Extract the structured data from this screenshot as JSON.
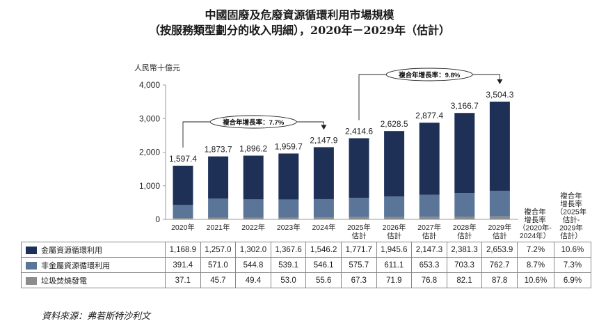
{
  "title": {
    "line1": "中國固廢及危廢資源循環利用市場規模",
    "line2": "（按服務類型劃分的收入明細），2020年－2029年（估計）"
  },
  "colors": {
    "metal": "#1f3057",
    "nonmetal": "#5a7598",
    "waste": "#8c8c8c"
  },
  "chart_data": {
    "type": "bar",
    "stacked": true,
    "unit_label": "人民幣十億元",
    "ylim": [
      0,
      4000
    ],
    "yticks": [
      "0",
      "1,000",
      "2,000",
      "3,000",
      "4,000"
    ],
    "categories": [
      "2020年",
      "2021年",
      "2022年",
      "2023年",
      "2024年",
      "2025年\n估計",
      "2026年\n估計",
      "2027年\n估計",
      "2028年\n估計",
      "2029年\n估計"
    ],
    "totals": [
      1597.4,
      1873.7,
      1896.2,
      1959.7,
      2147.9,
      2414.6,
      2628.5,
      2877.4,
      3166.7,
      3504.3
    ],
    "total_labels": [
      "1,597.4",
      "1,873.7",
      "1,896.2",
      "1,959.7",
      "2,147.9",
      "2,414.6",
      "2,628.5",
      "2,877.4",
      "3,166.7",
      "3,504.3"
    ],
    "series": [
      {
        "name": "垃圾焚燒發電",
        "color_key": "waste",
        "values": [
          37.1,
          45.7,
          49.4,
          53.0,
          55.6,
          67.3,
          71.9,
          76.8,
          82.1,
          87.8
        ],
        "labels": [
          "37.1",
          "45.7",
          "49.4",
          "53.0",
          "55.6",
          "67.3",
          "71.9",
          "76.8",
          "82.1",
          "87.8"
        ],
        "cagr1": "10.6%",
        "cagr2": "6.9%"
      },
      {
        "name": "非金屬資源循環利用",
        "color_key": "nonmetal",
        "values": [
          391.4,
          571.0,
          544.8,
          539.1,
          546.1,
          575.7,
          611.1,
          653.3,
          703.3,
          762.7
        ],
        "labels": [
          "391.4",
          "571.0",
          "544.8",
          "539.1",
          "546.1",
          "575.7",
          "611.1",
          "653.3",
          "703.3",
          "762.7"
        ],
        "cagr1": "8.7%",
        "cagr2": "7.3%"
      },
      {
        "name": "金屬資源循環利用",
        "color_key": "metal",
        "values": [
          1168.9,
          1257.0,
          1302.0,
          1367.6,
          1546.2,
          1771.7,
          1945.6,
          2147.3,
          2381.3,
          2653.9
        ],
        "labels": [
          "1,168.9",
          "1,257.0",
          "1,302.0",
          "1,367.6",
          "1,546.2",
          "1,771.7",
          "1,945.6",
          "2,147.3",
          "2,381.3",
          "2,653.9"
        ],
        "cagr1": "7.2%",
        "cagr2": "10.6%"
      }
    ],
    "table_order": [
      2,
      1,
      0
    ],
    "cagr_annotations": [
      {
        "label": "複合年增長率：7.7%",
        "from": 0,
        "to": 4
      },
      {
        "label": "複合年增長率：9.8%",
        "from": 5,
        "to": 9
      }
    ],
    "cagr_headers": [
      "複合年\n增長率\n（2020年-\n2024年）",
      "複合年\n增長率\n（2025年\n估計-\n2029年\n估計）"
    ]
  },
  "source": "資料來源：弗若斯特沙利文"
}
